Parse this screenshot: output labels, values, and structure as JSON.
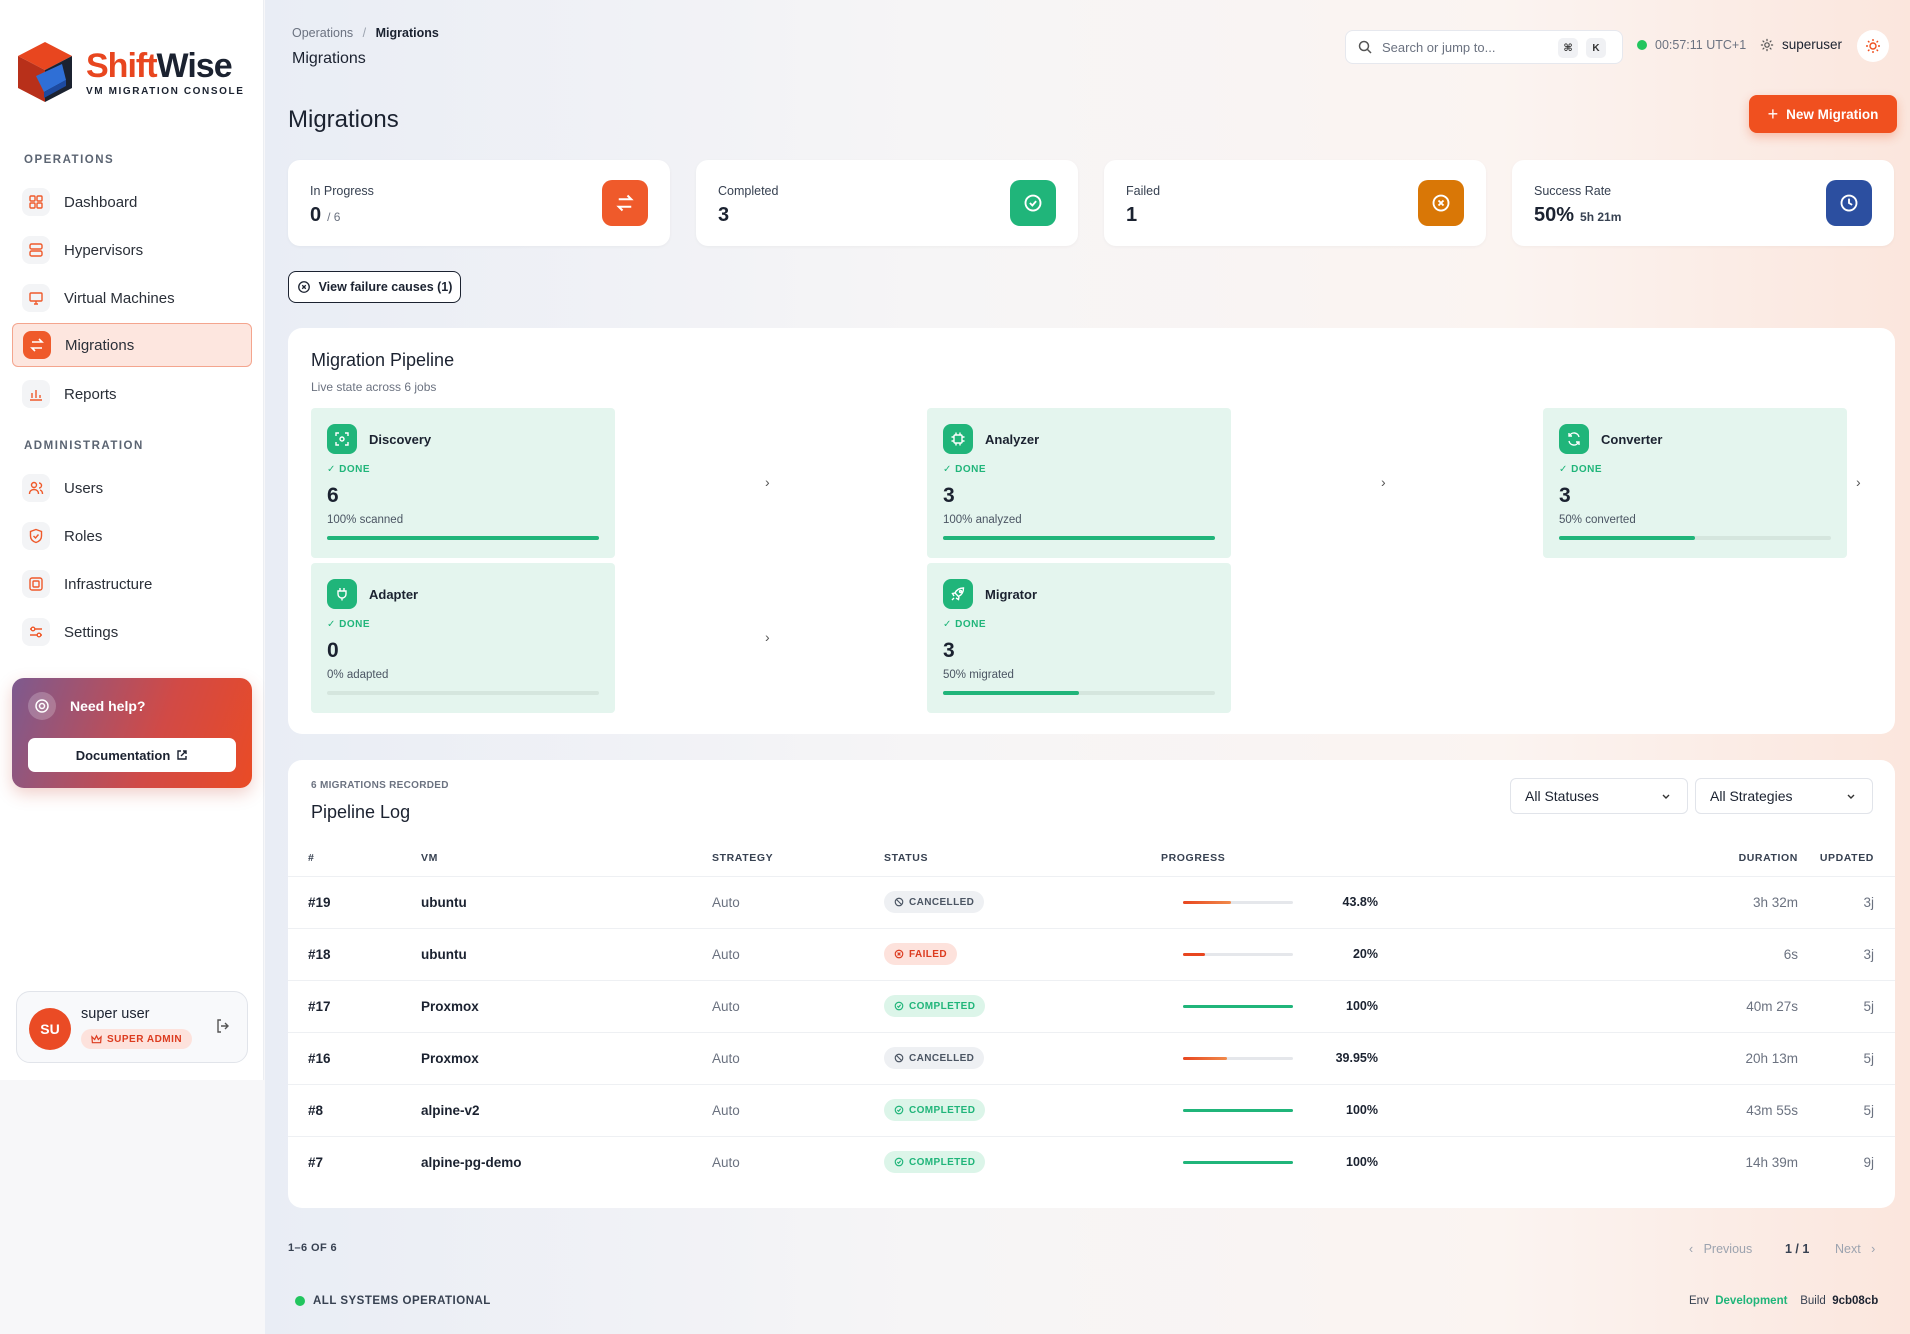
{
  "brand": {
    "name_a": "Shift",
    "name_b": "Wise",
    "subtitle": "VM MIGRATION CONSOLE"
  },
  "sidebar": {
    "operations_label": "OPERATIONS",
    "operations": [
      {
        "label": "Dashboard",
        "icon": "dashboard-icon"
      },
      {
        "label": "Hypervisors",
        "icon": "server-icon"
      },
      {
        "label": "Virtual Machines",
        "icon": "monitor-icon"
      },
      {
        "label": "Migrations",
        "icon": "swap-icon",
        "active": true
      },
      {
        "label": "Reports",
        "icon": "bar-chart-icon"
      }
    ],
    "administration_label": "ADMINISTRATION",
    "administration": [
      {
        "label": "Users",
        "icon": "users-icon"
      },
      {
        "label": "Roles",
        "icon": "shield-icon"
      },
      {
        "label": "Infrastructure",
        "icon": "infrastructure-icon"
      },
      {
        "label": "Settings",
        "icon": "sliders-icon"
      }
    ],
    "help": {
      "title": "Need help?",
      "button": "Documentation"
    },
    "user": {
      "initials": "SU",
      "name": "super user",
      "role": "SUPER ADMIN"
    }
  },
  "header": {
    "breadcrumb_parent": "Operations",
    "breadcrumb_sep": "/",
    "breadcrumb_current": "Migrations",
    "title": "Migrations",
    "search_placeholder": "Search or jump to...",
    "kbd_1": "⌘",
    "kbd_2": "K",
    "clock": "00:57:11 UTC+1",
    "username": "superuser"
  },
  "page": {
    "title": "Migrations",
    "new_button": "New Migration",
    "failure_button": "View failure causes (1)"
  },
  "stats": [
    {
      "label": "In Progress",
      "value": "0",
      "sub": "/ 6",
      "color": "#ef5a2b"
    },
    {
      "label": "Completed",
      "value": "3",
      "sub": "",
      "color": "#20b57a"
    },
    {
      "label": "Failed",
      "value": "1",
      "sub": "",
      "color": "#d97706"
    },
    {
      "label": "Success Rate",
      "value": "50%",
      "sub": "5h 21m",
      "color": "#2c4fa0"
    }
  ],
  "pipeline": {
    "title": "Migration Pipeline",
    "subtitle": "Live state across 6 jobs",
    "stages": [
      {
        "name": "Discovery",
        "state": "DONE",
        "value": "6",
        "sub": "100% scanned",
        "progress": 1.0
      },
      {
        "name": "Analyzer",
        "state": "DONE",
        "value": "3",
        "sub": "100% analyzed",
        "progress": 1.0
      },
      {
        "name": "Converter",
        "state": "DONE",
        "value": "3",
        "sub": "50% converted",
        "progress": 0.5
      },
      {
        "name": "Adapter",
        "state": "DONE",
        "value": "0",
        "sub": "0% adapted",
        "progress": 0.0
      },
      {
        "name": "Migrator",
        "state": "DONE",
        "value": "3",
        "sub": "50% migrated",
        "progress": 0.5
      }
    ]
  },
  "log": {
    "count_label": "6 MIGRATIONS RECORDED",
    "title": "Pipeline Log",
    "filter_status": "All Statuses",
    "filter_strategy": "All Strategies",
    "columns": {
      "id": "#",
      "vm": "VM",
      "strategy": "STRATEGY",
      "status": "STATUS",
      "progress": "PROGRESS",
      "duration": "DURATION",
      "updated": "UPDATED"
    },
    "rows": [
      {
        "id": "#19",
        "vm": "ubuntu",
        "strategy": "Auto",
        "status": "CANCELLED",
        "kind": "cancelled",
        "progress": 0.438,
        "pct": "43.8%",
        "duration": "3h 32m",
        "updated": "3j"
      },
      {
        "id": "#18",
        "vm": "ubuntu",
        "strategy": "Auto",
        "status": "FAILED",
        "kind": "failed",
        "progress": 0.2,
        "pct": "20%",
        "duration": "6s",
        "updated": "3j"
      },
      {
        "id": "#17",
        "vm": "Proxmox",
        "strategy": "Auto",
        "status": "COMPLETED",
        "kind": "completed",
        "progress": 1.0,
        "pct": "100%",
        "duration": "40m 27s",
        "updated": "5j"
      },
      {
        "id": "#16",
        "vm": "Proxmox",
        "strategy": "Auto",
        "status": "CANCELLED",
        "kind": "cancelled",
        "progress": 0.3995,
        "pct": "39.95%",
        "duration": "20h 13m",
        "updated": "5j"
      },
      {
        "id": "#8",
        "vm": "alpine-v2",
        "strategy": "Auto",
        "status": "COMPLETED",
        "kind": "completed",
        "progress": 1.0,
        "pct": "100%",
        "duration": "43m 55s",
        "updated": "5j"
      },
      {
        "id": "#7",
        "vm": "alpine-pg-demo",
        "strategy": "Auto",
        "status": "COMPLETED",
        "kind": "completed",
        "progress": 1.0,
        "pct": "100%",
        "duration": "14h 39m",
        "updated": "9j"
      }
    ]
  },
  "footer": {
    "range": "1–6 OF 6",
    "previous": "Previous",
    "page": "1 / 1",
    "next": "Next",
    "status": "ALL SYSTEMS OPERATIONAL",
    "env_label": "Env",
    "env_value": "Development",
    "build_label": "Build",
    "build_value": "9cb08cb"
  }
}
